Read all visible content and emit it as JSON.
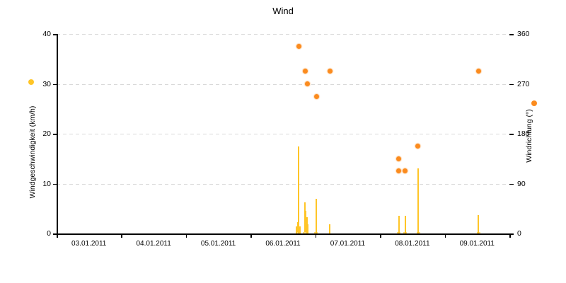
{
  "title": "Wind",
  "colors": {
    "speed_bar": "#FFC527",
    "speed_bar_base": "#FFDC74",
    "direction_dot": "#FB8B1E",
    "grid": "#D9D9D9",
    "axis": "#000000"
  },
  "chart_data": {
    "type": "mixed",
    "title": "Wind",
    "grid": "horizontal dashed, both axes aligned",
    "x_axis": {
      "tick_labels": [
        "03.01.2011",
        "04.01.2011",
        "05.01.2011",
        "06.01.2011",
        "07.01.2011",
        "08.01.2011",
        "09.01.2011"
      ],
      "note": "day offsets measured in days since 03.01.2011 00:00",
      "days_shown": 7
    },
    "y_left": {
      "label": "Windgeschwindigkeit (km/h)",
      "min": 0,
      "max": 40,
      "ticks": [
        0,
        10,
        20,
        30,
        40
      ]
    },
    "y_right": {
      "label": "Windrichtung (°)",
      "min": 0,
      "max": 360,
      "ticks": [
        0,
        90,
        180,
        270,
        360
      ]
    },
    "series": [
      {
        "name": "Windgeschwindigkeit",
        "type": "bar",
        "unit": "km/h",
        "axis": "left",
        "color": "#FFC527",
        "points": [
          {
            "day": 3.705,
            "value": 1.4
          },
          {
            "day": 3.728,
            "value": 2.2
          },
          {
            "day": 3.745,
            "value": 17.5
          },
          {
            "day": 3.762,
            "value": 1.4
          },
          {
            "day": 3.838,
            "value": 6.2
          },
          {
            "day": 3.853,
            "value": 4.5
          },
          {
            "day": 3.868,
            "value": 3.3
          },
          {
            "day": 3.885,
            "value": 1.8
          },
          {
            "day": 4.013,
            "value": 7.0
          },
          {
            "day": 4.226,
            "value": 1.8
          },
          {
            "day": 5.293,
            "value": 3.5
          },
          {
            "day": 5.392,
            "value": 3.5
          },
          {
            "day": 5.589,
            "value": 13.0
          },
          {
            "day": 6.519,
            "value": 3.7
          }
        ]
      },
      {
        "name": "Windrichtung",
        "type": "scatter",
        "unit": "°",
        "axis": "right",
        "color": "#FB8B1E",
        "points": [
          {
            "day": 3.748,
            "value": 337.5
          },
          {
            "day": 3.846,
            "value": 292.5
          },
          {
            "day": 3.875,
            "value": 270.0
          },
          {
            "day": 4.014,
            "value": 247.5
          },
          {
            "day": 4.225,
            "value": 292.5
          },
          {
            "day": 5.29,
            "value": 135.0
          },
          {
            "day": 5.29,
            "value": 112.5
          },
          {
            "day": 5.392,
            "value": 112.5
          },
          {
            "day": 5.585,
            "value": 157.5
          },
          {
            "day": 6.521,
            "value": 292.5
          }
        ]
      }
    ]
  }
}
